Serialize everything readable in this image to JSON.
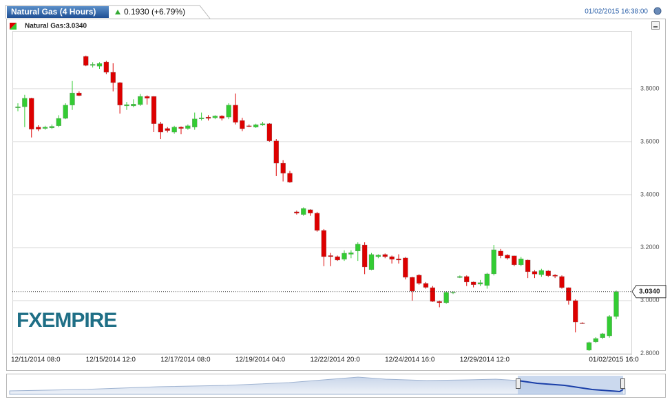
{
  "chart_data": {
    "type": "candlestick",
    "title": "Natural Gas (4 Hours)",
    "change": "0.1930 (+6.79%)",
    "timestamp": "01/02/2015 16:38:00",
    "legend_label": "Natural Gas:3.0340",
    "logo": "FXEMPIRE",
    "up_color": "#33cc33",
    "down_color": "#dd0000",
    "grid": true,
    "ylim": [
      2.797,
      4.018
    ],
    "yticks": [
      {
        "value": 2.8,
        "label": "2.8000"
      },
      {
        "value": 3.0,
        "label": "3.0000"
      },
      {
        "value": 3.2,
        "label": "3.2000"
      },
      {
        "value": 3.4,
        "label": "3.4000"
      },
      {
        "value": 3.6,
        "label": "3.6000"
      },
      {
        "value": 3.8,
        "label": "3.8000"
      }
    ],
    "last": {
      "value": 3.034,
      "label": "3.0340"
    },
    "categories": [
      "12/11/2014 08:0",
      null,
      null,
      null,
      null,
      null,
      null,
      null,
      null,
      null,
      null,
      "12/15/2014 12:0",
      null,
      null,
      null,
      null,
      null,
      null,
      null,
      null,
      null,
      null,
      "12/17/2014 08:0",
      null,
      null,
      null,
      null,
      null,
      null,
      null,
      null,
      null,
      null,
      "12/19/2014 04:0",
      null,
      null,
      null,
      null,
      null,
      null,
      null,
      null,
      null,
      null,
      "12/22/2014 20:0",
      null,
      null,
      null,
      null,
      null,
      null,
      null,
      null,
      null,
      null,
      "12/24/2014 16:0",
      null,
      null,
      null,
      null,
      null,
      null,
      null,
      null,
      null,
      null,
      "12/29/2014 12:0",
      null,
      null,
      null,
      null,
      null,
      null,
      null,
      null,
      null,
      null,
      null,
      null,
      null,
      null,
      null,
      null,
      null,
      null,
      "01/02/2015 16:0",
      null,
      null,
      null
    ],
    "open": [
      3.728,
      3.732,
      3.764,
      3.655,
      3.65,
      3.652,
      3.66,
      3.688,
      3.738,
      3.784,
      3.922,
      3.888,
      3.885,
      3.901,
      3.862,
      3.823,
      3.735,
      3.735,
      3.74,
      3.771,
      3.771,
      3.668,
      3.65,
      3.636,
      3.655,
      3.65,
      3.655,
      3.686,
      3.693,
      3.69,
      3.697,
      3.693,
      3.738,
      3.68,
      3.66,
      3.655,
      3.663,
      3.668,
      3.603,
      3.519,
      3.481,
      3.335,
      3.325,
      3.343,
      3.33,
      3.265,
      3.17,
      3.166,
      3.156,
      3.175,
      3.187,
      3.21,
      3.117,
      3.166,
      3.174,
      3.166,
      3.158,
      3.161,
      3.088,
      3.096,
      3.065,
      3.049,
      2.997,
      2.992,
      3.029,
      3.087,
      3.091,
      3.07,
      3.062,
      3.057,
      3.101,
      3.187,
      3.172,
      3.169,
      3.135,
      3.153,
      3.11,
      3.098,
      3.112,
      3.096,
      3.091,
      3.049,
      3.0,
      2.916,
      2.813,
      2.844,
      2.86,
      2.867,
      2.94
    ],
    "high": [
      3.745,
      3.777,
      3.766,
      3.662,
      3.66,
      3.665,
      3.7,
      3.745,
      3.829,
      3.79,
      3.925,
      3.9,
      3.9,
      3.905,
      3.896,
      3.825,
      3.75,
      3.76,
      3.78,
      3.775,
      3.772,
      3.675,
      3.655,
      3.66,
      3.658,
      3.665,
      3.71,
      3.71,
      3.7,
      3.7,
      3.7,
      3.745,
      3.782,
      3.69,
      3.665,
      3.668,
      3.675,
      3.67,
      3.61,
      3.53,
      3.49,
      3.34,
      3.352,
      3.345,
      3.335,
      3.27,
      3.18,
      3.17,
      3.19,
      3.19,
      3.22,
      3.22,
      3.18,
      3.175,
      3.178,
      3.17,
      3.175,
      3.165,
      3.09,
      3.1,
      3.07,
      3.055,
      3.0,
      3.035,
      3.035,
      3.095,
      3.095,
      3.072,
      3.078,
      3.105,
      3.21,
      3.195,
      3.175,
      3.17,
      3.165,
      3.155,
      3.115,
      3.12,
      3.115,
      3.1,
      3.095,
      3.05,
      3.005,
      2.918,
      2.845,
      2.862,
      2.878,
      2.945,
      3.038
    ],
    "low": [
      3.715,
      3.655,
      3.616,
      3.64,
      3.645,
      3.648,
      3.655,
      3.685,
      3.72,
      3.772,
      3.885,
      3.88,
      3.875,
      3.855,
      3.79,
      3.706,
      3.72,
      3.73,
      3.735,
      3.74,
      3.636,
      3.61,
      3.635,
      3.63,
      3.628,
      3.645,
      3.645,
      3.68,
      3.68,
      3.685,
      3.68,
      3.685,
      3.665,
      3.64,
      3.655,
      3.652,
      3.66,
      3.6,
      3.47,
      3.45,
      3.445,
      3.325,
      3.32,
      3.32,
      3.26,
      3.13,
      3.13,
      3.15,
      3.15,
      3.16,
      3.15,
      3.1,
      3.115,
      3.16,
      3.16,
      3.14,
      3.14,
      3.08,
      3.0,
      3.06,
      3.045,
      2.995,
      2.975,
      2.988,
      3.025,
      3.085,
      3.055,
      3.05,
      3.055,
      3.045,
      3.095,
      3.16,
      3.155,
      3.13,
      3.13,
      3.085,
      3.085,
      3.09,
      3.09,
      3.085,
      3.045,
      2.985,
      2.88,
      2.912,
      2.81,
      2.84,
      2.855,
      2.86,
      2.93
    ],
    "close": [
      3.732,
      3.764,
      3.647,
      3.647,
      3.655,
      3.658,
      3.688,
      3.738,
      3.784,
      3.774,
      3.888,
      3.892,
      3.895,
      3.862,
      3.823,
      3.738,
      3.74,
      3.742,
      3.771,
      3.764,
      3.668,
      3.636,
      3.642,
      3.655,
      3.65,
      3.66,
      3.686,
      3.69,
      3.688,
      3.697,
      3.688,
      3.738,
      3.673,
      3.649,
      3.657,
      3.664,
      3.668,
      3.603,
      3.519,
      3.481,
      3.447,
      3.33,
      3.348,
      3.33,
      3.265,
      3.166,
      3.166,
      3.153,
      3.179,
      3.181,
      3.213,
      3.127,
      3.174,
      3.172,
      3.166,
      3.156,
      3.153,
      3.088,
      3.036,
      3.065,
      3.05,
      2.997,
      2.992,
      3.031,
      3.031,
      3.091,
      3.07,
      3.06,
      3.068,
      3.101,
      3.192,
      3.169,
      3.16,
      3.135,
      3.158,
      3.109,
      3.1,
      3.114,
      3.094,
      3.092,
      3.049,
      3.0,
      2.919,
      2.913,
      2.842,
      2.857,
      2.875,
      2.94,
      3.034
    ]
  }
}
